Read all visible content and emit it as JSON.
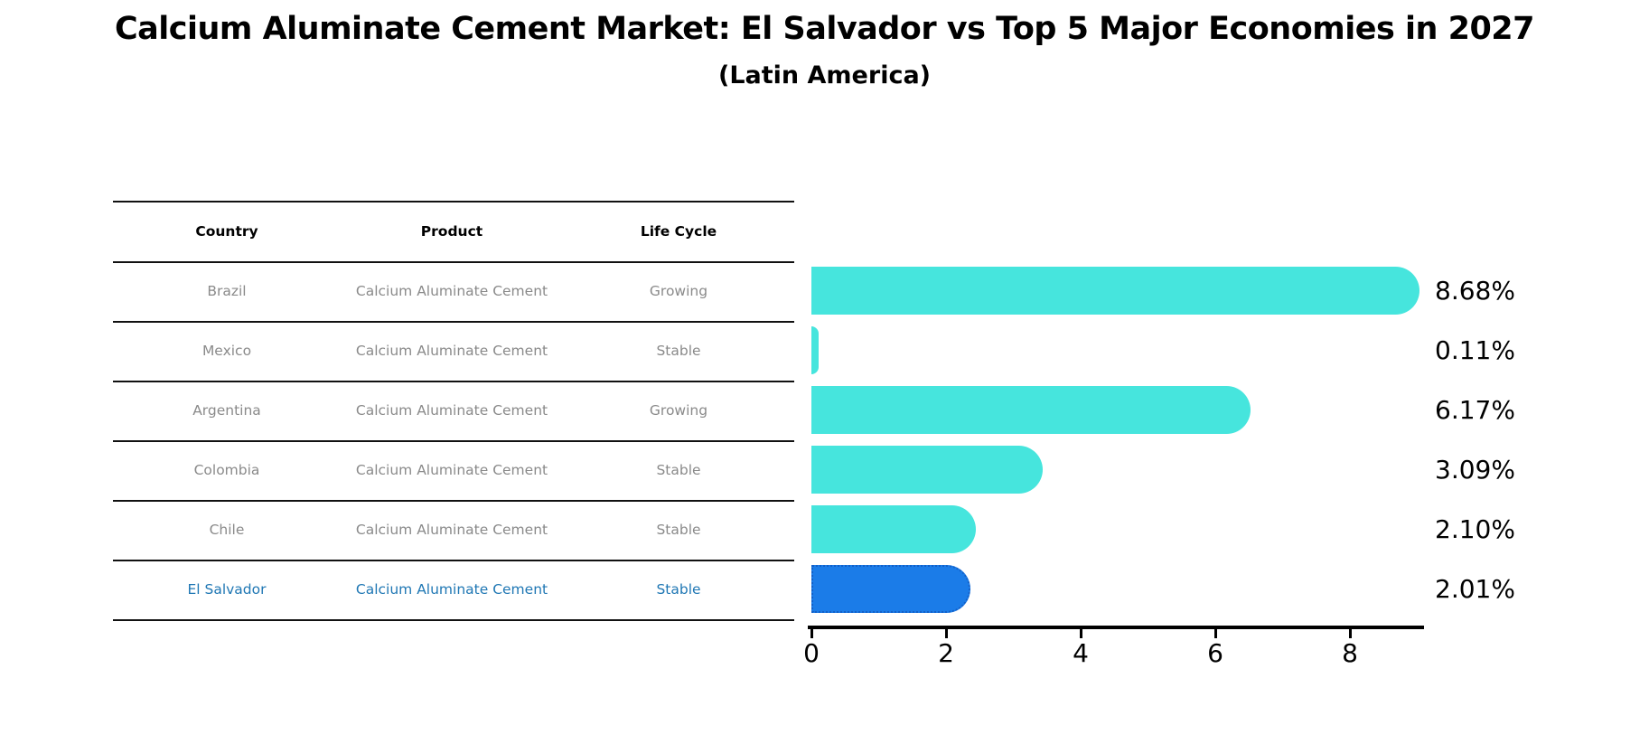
{
  "title": "Calcium Aluminate Cement Market: El Salvador vs Top 5 Major Economies in 2027",
  "subtitle": "(Latin America)",
  "table": {
    "headers": [
      "Country",
      "Product",
      "Life Cycle"
    ],
    "rows": [
      {
        "country": "Brazil",
        "product": "Calcium Aluminate Cement",
        "life_cycle": "Growing",
        "highlight": false
      },
      {
        "country": "Mexico",
        "product": "Calcium Aluminate Cement",
        "life_cycle": "Stable",
        "highlight": false
      },
      {
        "country": "Argentina",
        "product": "Calcium Aluminate Cement",
        "life_cycle": "Growing",
        "highlight": false
      },
      {
        "country": "Colombia",
        "product": "Calcium Aluminate Cement",
        "life_cycle": "Stable",
        "highlight": false
      },
      {
        "country": "Chile",
        "product": "Calcium Aluminate Cement",
        "life_cycle": "Stable",
        "highlight": false
      },
      {
        "country": "El Salvador",
        "product": "Calcium Aluminate Cement",
        "life_cycle": "Stable",
        "highlight": true
      }
    ]
  },
  "chart_data": {
    "type": "bar",
    "orientation": "horizontal",
    "title": "Calcium Aluminate Cement Market: El Salvador vs Top 5 Major Economies in 2027 (Latin America)",
    "categories": [
      "Brazil",
      "Mexico",
      "Argentina",
      "Colombia",
      "Chile",
      "El Salvador"
    ],
    "values": [
      8.68,
      0.11,
      6.17,
      3.09,
      2.1,
      2.01
    ],
    "value_labels": [
      "8.68%",
      "0.11%",
      "6.17%",
      "3.09%",
      "2.10%",
      "2.01%"
    ],
    "highlight_index": 5,
    "xlim": [
      0,
      9.15
    ],
    "x_ticks": [
      0,
      2,
      4,
      6,
      8
    ],
    "grid": false,
    "legend": false,
    "colors": {
      "bar": "#46E5DD",
      "highlight_bar": "#1B7CE8",
      "highlight_border": "#1360C8",
      "row_text": "#8a8a8a",
      "highlight_text": "#1f77b4",
      "axis": "#000000",
      "header_text": "#000000"
    }
  }
}
